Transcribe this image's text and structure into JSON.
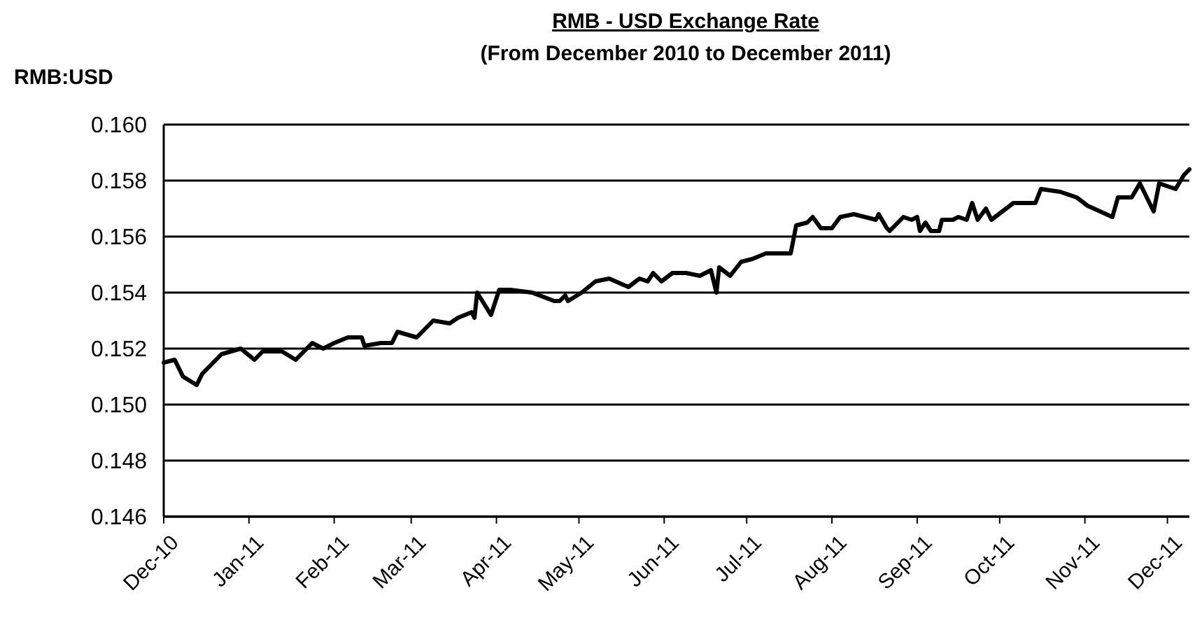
{
  "chart_data": {
    "type": "line",
    "title": "RMB - USD Exchange Rate",
    "subtitle": "(From December 2010 to December 2011)",
    "ylabel": "RMB:USD",
    "x": [
      "2010-12-01",
      "2010-12-05",
      "2010-12-08",
      "2010-12-13",
      "2010-12-15",
      "2010-12-22",
      "2010-12-29",
      "2011-01-03",
      "2011-01-06",
      "2011-01-13",
      "2011-01-18",
      "2011-01-24",
      "2011-01-28",
      "2011-02-01",
      "2011-02-06",
      "2011-02-11",
      "2011-02-12",
      "2011-02-18",
      "2011-02-22",
      "2011-02-24",
      "2011-03-03",
      "2011-03-09",
      "2011-03-15",
      "2011-03-18",
      "2011-03-23",
      "2011-03-24",
      "2011-03-25",
      "2011-03-30",
      "2011-04-02",
      "2011-04-06",
      "2011-04-14",
      "2011-04-22",
      "2011-04-24",
      "2011-04-26",
      "2011-04-27",
      "2011-05-02",
      "2011-05-07",
      "2011-05-12",
      "2011-05-19",
      "2011-05-23",
      "2011-05-26",
      "2011-05-28",
      "2011-05-31",
      "2011-06-04",
      "2011-06-09",
      "2011-06-14",
      "2011-06-18",
      "2011-06-20",
      "2011-06-21",
      "2011-06-25",
      "2011-06-29",
      "2011-07-03",
      "2011-07-08",
      "2011-07-12",
      "2011-07-17",
      "2011-07-19",
      "2011-07-23",
      "2011-07-25",
      "2011-07-28",
      "2011-08-01",
      "2011-08-04",
      "2011-08-09",
      "2011-08-13",
      "2011-08-17",
      "2011-08-18",
      "2011-08-21",
      "2011-08-22",
      "2011-08-27",
      "2011-08-30",
      "2011-09-01",
      "2011-09-02",
      "2011-09-04",
      "2011-09-06",
      "2011-09-09",
      "2011-09-10",
      "2011-09-14",
      "2011-09-16",
      "2011-09-19",
      "2011-09-21",
      "2011-09-23",
      "2011-09-26",
      "2011-09-28",
      "2011-10-06",
      "2011-10-14",
      "2011-10-16",
      "2011-10-23",
      "2011-10-29",
      "2011-11-02",
      "2011-11-11",
      "2011-11-13",
      "2011-11-18",
      "2011-11-21",
      "2011-11-26",
      "2011-11-28",
      "2011-12-04",
      "2011-12-07",
      "2011-12-09"
    ],
    "series": [
      {
        "color": "#000000",
        "values": [
          0.1515,
          0.1516,
          0.151,
          0.1507,
          0.1511,
          0.1518,
          0.152,
          0.1516,
          0.1519,
          0.1519,
          0.1516,
          0.1522,
          0.152,
          0.1522,
          0.1524,
          0.1524,
          0.1521,
          0.1522,
          0.1522,
          0.1526,
          0.1524,
          0.153,
          0.1529,
          0.1531,
          0.1533,
          0.1531,
          0.154,
          0.1532,
          0.1541,
          0.1541,
          0.154,
          0.1537,
          0.1537,
          0.1539,
          0.1537,
          0.154,
          0.1544,
          0.1545,
          0.1542,
          0.1545,
          0.1544,
          0.1547,
          0.1544,
          0.1547,
          0.1547,
          0.1546,
          0.1548,
          0.154,
          0.1549,
          0.1546,
          0.1551,
          0.1552,
          0.1554,
          0.1554,
          0.1554,
          0.1564,
          0.1565,
          0.1567,
          0.1563,
          0.1563,
          0.1567,
          0.1568,
          0.1567,
          0.1566,
          0.1568,
          0.1563,
          0.1562,
          0.1567,
          0.1566,
          0.1567,
          0.1562,
          0.1565,
          0.1562,
          0.1562,
          0.1566,
          0.1566,
          0.1567,
          0.1566,
          0.1572,
          0.1566,
          0.157,
          0.1566,
          0.1572,
          0.1572,
          0.1577,
          0.1576,
          0.1574,
          0.1571,
          0.1567,
          0.1574,
          0.1574,
          0.1579,
          0.1569,
          0.1579,
          0.1577,
          0.1582,
          0.1584
        ]
      }
    ],
    "xlim": [
      "2010-12-01",
      "2011-12-09"
    ],
    "xticks": [
      {
        "value": "2010-12-01",
        "label": "Dec-10"
      },
      {
        "value": "2011-01-01",
        "label": "Jan-11"
      },
      {
        "value": "2011-02-01",
        "label": "Feb-11"
      },
      {
        "value": "2011-03-01",
        "label": "Mar-11"
      },
      {
        "value": "2011-04-01",
        "label": "Apr-11"
      },
      {
        "value": "2011-05-01",
        "label": "May-11"
      },
      {
        "value": "2011-06-01",
        "label": "Jun-11"
      },
      {
        "value": "2011-07-01",
        "label": "Jul-11"
      },
      {
        "value": "2011-08-01",
        "label": "Aug-11"
      },
      {
        "value": "2011-09-01",
        "label": "Sep-11"
      },
      {
        "value": "2011-10-01",
        "label": "Oct-11"
      },
      {
        "value": "2011-11-01",
        "label": "Nov-11"
      },
      {
        "value": "2011-12-01",
        "label": "Dec-11"
      }
    ],
    "ylim": [
      0.146,
      0.16
    ],
    "yticks": [
      {
        "value": 0.146,
        "label": "0.146"
      },
      {
        "value": 0.148,
        "label": "0.148"
      },
      {
        "value": 0.15,
        "label": "0.150"
      },
      {
        "value": 0.152,
        "label": "0.152"
      },
      {
        "value": 0.154,
        "label": "0.154"
      },
      {
        "value": 0.156,
        "label": "0.156"
      },
      {
        "value": 0.158,
        "label": "0.158"
      },
      {
        "value": 0.16,
        "label": "0.160"
      }
    ],
    "grid": "y",
    "marker": "none",
    "line_style": "solid"
  }
}
